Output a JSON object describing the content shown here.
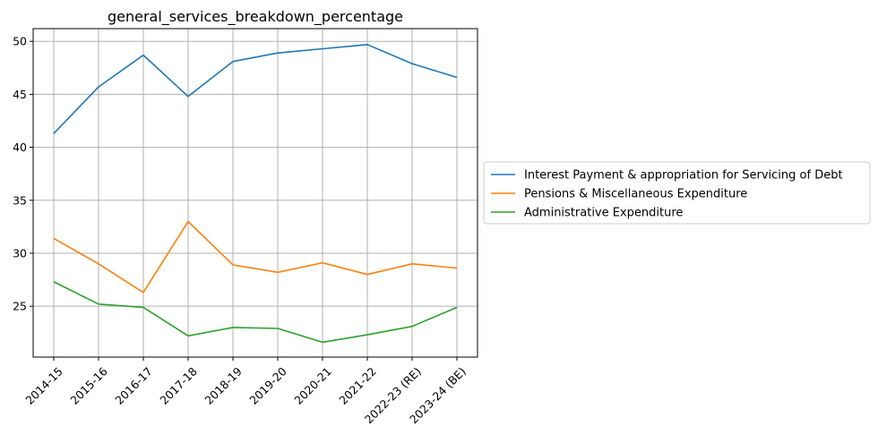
{
  "chart_data": {
    "type": "line",
    "title": "general_services_breakdown_percentage",
    "xlabel": "",
    "ylabel": "",
    "categories": [
      "2014-15",
      "2015-16",
      "2016-17",
      "2017-18",
      "2018-19",
      "2019-20",
      "2020-21",
      "2021-22",
      "2022-23 (RE)",
      "2023-24 (BE)"
    ],
    "ylim": [
      20.2,
      51.2
    ],
    "yticks": [
      25,
      30,
      35,
      40,
      45,
      50
    ],
    "grid": true,
    "legend_position": "right, outside plot",
    "series": [
      {
        "name": "Interest Payment & appropriation for Servicing of Debt",
        "color": "#1f77b4",
        "values": [
          41.3,
          45.7,
          48.7,
          44.8,
          48.1,
          48.9,
          49.3,
          49.7,
          47.9,
          46.6
        ]
      },
      {
        "name": "Pensions & Miscellaneous Expenditure",
        "color": "#ff7f0e",
        "values": [
          31.4,
          29.0,
          26.3,
          33.0,
          28.9,
          28.2,
          29.1,
          28.0,
          29.0,
          28.6
        ]
      },
      {
        "name": "Administrative Expenditure",
        "color": "#2ca02c",
        "values": [
          27.3,
          25.2,
          24.9,
          22.2,
          23.0,
          22.9,
          21.6,
          22.3,
          23.1,
          24.9
        ]
      }
    ]
  }
}
